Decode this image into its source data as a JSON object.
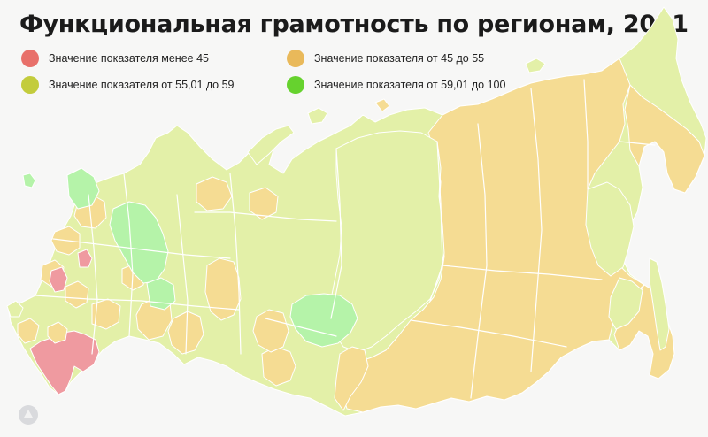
{
  "title": "Функциональная грамотность по регионам, 2021",
  "legend": [
    {
      "label": "Значение показателя менее 45",
      "color": "#e8706a"
    },
    {
      "label": "Значение показателя от 45 до 55",
      "color": "#e9b95a"
    },
    {
      "label": "Значение показателя от 55,01 до 59",
      "color": "#c3cc3c"
    },
    {
      "label": "Значение показателя от 59,01 до 100",
      "color": "#66d22e"
    }
  ],
  "map_colors": {
    "below_45": "#ef9aa0",
    "from_45_to_55": "#f5dc93",
    "from_55_01_to_59": "#e3f0a8",
    "from_59_01_to_100": "#b5f3a9",
    "borders": "#ffffff"
  },
  "watermark_icon": "logo-icon"
}
